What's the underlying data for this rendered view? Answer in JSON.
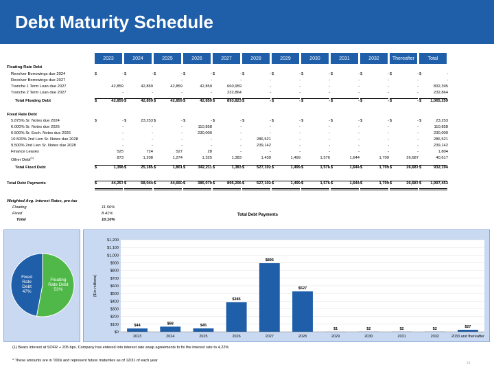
{
  "title": "Debt Maturity Schedule",
  "columns": [
    "2023",
    "2024",
    "2025",
    "2026",
    "2027",
    "2028",
    "2029",
    "2030",
    "2031",
    "2032",
    "Thereafter",
    "Total"
  ],
  "sections": [
    {
      "label": "Floating Rate Debt"
    },
    {
      "label": "Revolver Borrowings due 2024",
      "dollar": true,
      "values": [
        "-",
        "-",
        "-",
        "-",
        "-",
        "-",
        "-",
        "-",
        "-",
        "-",
        "-",
        "-"
      ]
    },
    {
      "label": "Revolver Borrowings due 2027",
      "values": [
        "-",
        "-",
        "-",
        "-",
        "-",
        "-",
        "-",
        "-",
        "-",
        "-",
        "-",
        "-"
      ]
    },
    {
      "label": "Tranche 1 Term Loan due 2027",
      "values": [
        "42,859",
        "42,859",
        "42,859",
        "42,859",
        "660,959",
        "-",
        "-",
        "-",
        "-",
        "-",
        "-",
        "832,395"
      ]
    },
    {
      "label": "Tranche 2 Term Loan due 2027",
      "values": [
        "-",
        "-",
        "-",
        "-",
        "232,864",
        "-",
        "-",
        "-",
        "-",
        "-",
        "-",
        "232,864"
      ]
    },
    {
      "label": "Total Floating Debt",
      "total": true,
      "dollar": true,
      "values": [
        "42,859",
        "42,859",
        "42,859",
        "42,859",
        "893,823",
        "-",
        "-",
        "-",
        "-",
        "-",
        "-",
        "1,065,259"
      ]
    },
    {
      "label": "Fixed Rate Debt"
    },
    {
      "label": "5.875% Sr. Notes due 2024",
      "dollar": true,
      "values": [
        "-",
        "23,253",
        "-",
        "-",
        "-",
        "-",
        "-",
        "-",
        "-",
        "-",
        "-",
        "23,253"
      ]
    },
    {
      "label": "6.000% Sr. Notes due 2026",
      "values": [
        "-",
        "-",
        "-",
        "110,858",
        "-",
        "-",
        "-",
        "-",
        "-",
        "-",
        "-",
        "110,858"
      ]
    },
    {
      "label": "6.500% Sr. Exch. Notes due 2026",
      "values": [
        "-",
        "-",
        "-",
        "230,000",
        "-",
        "-",
        "-",
        "-",
        "-",
        "-",
        "-",
        "230,000"
      ]
    },
    {
      "label": "10.500% 2nd Lien Sr. Notes due 2028",
      "values": [
        "-",
        "-",
        "-",
        "-",
        "-",
        "286,521",
        "-",
        "-",
        "-",
        "-",
        "-",
        "286,521"
      ]
    },
    {
      "label": "9.500% 2nd Lien Sr. Notes due 2028",
      "values": [
        "-",
        "-",
        "-",
        "-",
        "-",
        "239,142",
        "-",
        "-",
        "-",
        "-",
        "-",
        "239,142"
      ]
    },
    {
      "label": "Finance Leases",
      "values": [
        "525",
        "724",
        "527",
        "28",
        "-",
        "-",
        "-",
        "-",
        "-",
        "-",
        "-",
        "1,804"
      ]
    },
    {
      "label": "Other Debt",
      "sup": "(1)",
      "values": [
        "873",
        "1,208",
        "1,274",
        "1,325",
        "1,383",
        "1,439",
        "1,499",
        "1,576",
        "1,644",
        "1,709",
        "26,687",
        "40,617"
      ]
    },
    {
      "label": "Total Fixed Debt",
      "total": true,
      "dollar": true,
      "values": [
        "1,398",
        "25,185",
        "1,801",
        "342,211",
        "1,383",
        "527,102",
        "1,499",
        "1,576",
        "1,644",
        "1,709",
        "26,687",
        "932,194"
      ]
    },
    {
      "label": "Total Debt Payments",
      "grand": true,
      "dollar": true,
      "values": [
        "44,257",
        "68,044",
        "44,660",
        "385,070",
        "895,206",
        "527,102",
        "1,499",
        "1,576",
        "1,644",
        "1,709",
        "26,687",
        "1,997,453"
      ]
    }
  ],
  "weighted": {
    "heading": "Weighted Avg. Interest Rates, pre-tax",
    "rows": [
      {
        "label": "Floating",
        "value": "11.56%"
      },
      {
        "label": "Fixed",
        "value": "8.41%"
      },
      {
        "label": "Total",
        "value": "10.10%"
      }
    ]
  },
  "chart_data": [
    {
      "type": "pie",
      "slices": [
        {
          "label": "Floating Rate Debt 53%",
          "value": 53,
          "color": "#4fb848"
        },
        {
          "label": "Fixed Rate Debt 47%",
          "value": 47,
          "color": "#1f5ea8"
        }
      ]
    },
    {
      "type": "bar",
      "title": "Total Debt Payments",
      "ylabel": "($ in millions)",
      "categories": [
        "2023",
        "2024",
        "2025",
        "2026",
        "2027",
        "2028",
        "2029",
        "2030",
        "2031",
        "2032",
        "2033 and thereafter"
      ],
      "values": [
        44,
        68,
        45,
        385,
        895,
        527,
        1,
        2,
        2,
        2,
        27
      ],
      "data_labels": [
        "$44",
        "$68",
        "$45",
        "$385",
        "$895",
        "$527",
        "$1",
        "$2",
        "$2",
        "$2",
        "$27"
      ],
      "yticks": [
        "$0",
        "$100",
        "$200",
        "$300",
        "$400",
        "$500",
        "$600",
        "$700",
        "$800",
        "$900",
        "$1,000",
        "$1,100",
        "$1,200"
      ],
      "ylim": [
        0,
        1200
      ],
      "bar_color": "#1f5ea8"
    }
  ],
  "footnote1": "(1) Bears interest at SOFR + 205 bps. Company has entered into interest rate swap agreements to fix the interest rate to 4.22%",
  "footnote2": "*  These amounts are in '000s and represent future maturities as of 12/31 of each year",
  "page_number": "14"
}
